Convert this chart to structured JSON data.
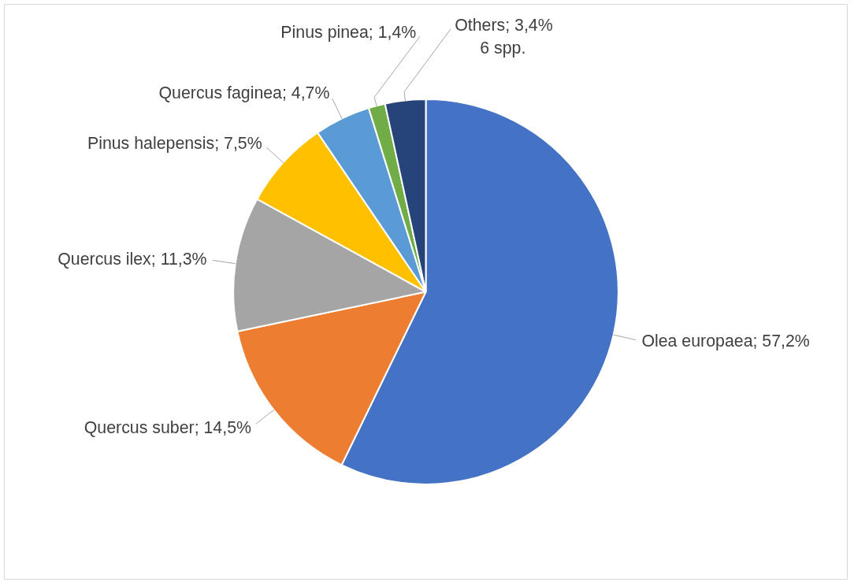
{
  "chart_data": {
    "type": "pie",
    "categories": [
      "Olea europaea",
      "Quercus suber",
      "Quercus ilex",
      "Pinus halepensis",
      "Quercus faginea",
      "Pinus pinea",
      "Others"
    ],
    "values": [
      57.2,
      14.5,
      11.3,
      7.5,
      4.7,
      1.4,
      3.4
    ],
    "value_labels": [
      "57,2%",
      "14,5%",
      "11,3%",
      "7,5%",
      "4,7%",
      "1,4%",
      "3,4%"
    ],
    "colors": [
      "#4472c4",
      "#ed7d31",
      "#a5a5a5",
      "#ffc000",
      "#5b9bd5",
      "#70ad47",
      "#264478"
    ],
    "annotations": [
      "6 spp."
    ],
    "legend": false
  }
}
